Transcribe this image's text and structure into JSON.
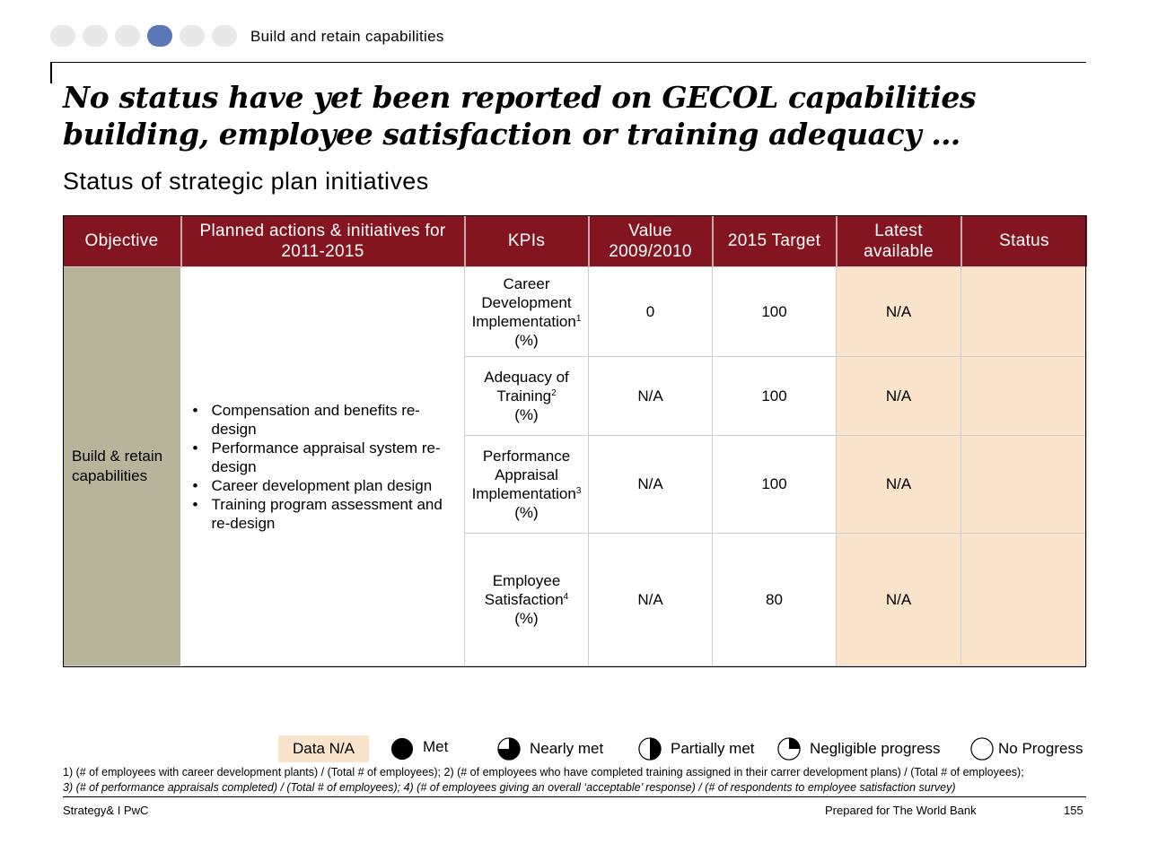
{
  "header": {
    "dots": [
      {
        "active": false
      },
      {
        "active": false
      },
      {
        "active": false
      },
      {
        "active": true
      },
      {
        "active": false
      },
      {
        "active": false
      }
    ],
    "section_label": "Build and retain capabilities"
  },
  "title": "No status have yet been reported on GECOL capabilities building, employee satisfaction or training adequacy …",
  "subtitle": "Status of strategic plan initiatives",
  "table": {
    "headers": {
      "objective": "Objective",
      "actions": "Planned actions & initiatives for 2011-2015",
      "kpis": "KPIs",
      "value": "Value 2009/2010",
      "target": "2015 Target",
      "latest": "Latest available",
      "status": "Status"
    },
    "objective": "Build & retain capabilities",
    "actions": [
      "Compensation and benefits re-design",
      "Performance appraisal system re-design",
      "Career development plan design",
      "Training program assessment and re-design"
    ],
    "rows": [
      {
        "kpi": "Career Development Implementation",
        "sup": "1",
        "unit": "(%)",
        "value": "0",
        "target": "100",
        "latest": "N/A",
        "status": ""
      },
      {
        "kpi": "Adequacy of Training",
        "sup": "2",
        "unit": "(%)",
        "value": "N/A",
        "target": "100",
        "latest": "N/A",
        "status": ""
      },
      {
        "kpi": "Performance Appraisal Implementation",
        "sup": "3",
        "unit": "(%)",
        "value": "N/A",
        "target": "100",
        "latest": "N/A",
        "status": ""
      },
      {
        "kpi": "Employee Satisfaction",
        "sup": "4",
        "unit": "(%)",
        "value": "N/A",
        "target": "80",
        "latest": "N/A",
        "status": ""
      }
    ]
  },
  "legend": {
    "data_na": "Data N/A",
    "met": "Met",
    "nearly_met": "Nearly met",
    "partially_met": "Partially met",
    "negligible": "Negligible progress",
    "no_progress": "No Progress",
    "data_na_color": "#fae5cc"
  },
  "footnotes": {
    "line1": "1) (# of employees with career development plants) / (Total # of employees); 2) (# of employees who have completed training assigned in their carrer development plans) / (Total # of employees);",
    "line2": "3) (# of performance appraisals completed) / (Total # of employees); 4) (# of employees giving an overall ‘acceptable’ response) / (# of respondents to employee satisfaction survey)"
  },
  "footer": {
    "left": "Strategy& I PwC",
    "center": "Prepared for The World Bank",
    "page": "155"
  },
  "colors": {
    "header_red": "#821520",
    "objective_tan": "#b8b39b",
    "latest_peach": "#fae5cc",
    "active_dot": "#5b77b6"
  }
}
